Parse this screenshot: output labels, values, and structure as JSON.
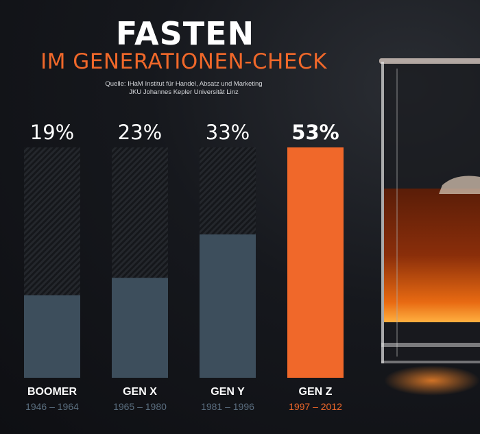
{
  "header": {
    "title": "FASTEN",
    "subtitle": "IM GENERATIONEN-CHECK",
    "source_line1": "Quelle: IHaM Institut für Handel, Absatz und Marketing",
    "source_line2": "JKU Johannes Kepler Universität Linz"
  },
  "colors": {
    "accent": "#f0682a",
    "bar": "#3d4e5c",
    "track": "#1c1e22",
    "background": "#15171c"
  },
  "chart_data": {
    "type": "bar",
    "categories": [
      "BOOMER",
      "GEN X",
      "GEN Y",
      "GEN Z"
    ],
    "years": [
      "1946 – 1964",
      "1965 – 1980",
      "1981 – 1996",
      "1997 – 2012"
    ],
    "values": [
      19,
      23,
      33,
      53
    ],
    "value_labels": [
      "19%",
      "23%",
      "33%",
      "53%"
    ],
    "highlight": "GEN Z",
    "ylim": [
      0,
      53
    ],
    "grid": false
  },
  "image": {
    "subject": "whisky-glass-icon"
  }
}
